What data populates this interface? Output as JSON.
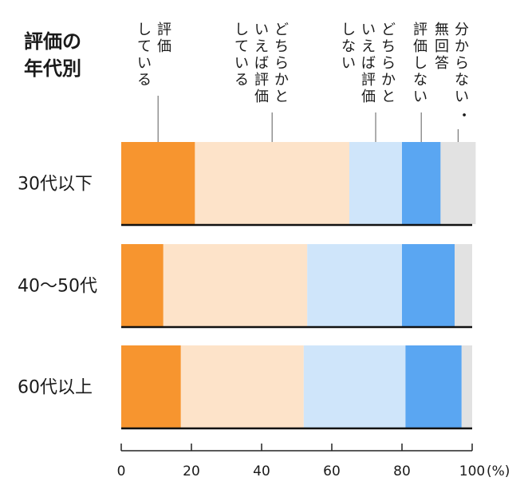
{
  "chart_data": {
    "type": "bar",
    "orientation": "horizontal",
    "stacked": true,
    "title": "評価の\n年代別",
    "categories": [
      "30代以下",
      "40〜50代",
      "60代以上"
    ],
    "series": [
      {
        "name": "評価\nしている",
        "values": [
          21,
          12,
          17
        ]
      },
      {
        "name": "どちらかと\nいえば評価\nしている",
        "values": [
          44,
          41,
          35
        ]
      },
      {
        "name": "どちらかと\nいえば評価\nしない",
        "values": [
          15,
          27,
          29
        ]
      },
      {
        "name": "評価しない",
        "values": [
          11,
          15,
          16
        ]
      },
      {
        "name": "分からない・\n無回答",
        "values": [
          10,
          5,
          3
        ]
      }
    ],
    "xlim": [
      0,
      100
    ],
    "xticks": [
      0,
      20,
      40,
      60,
      80,
      100
    ],
    "xtick_labels": [
      "0",
      "20",
      "40",
      "60",
      "80",
      "100"
    ],
    "xunit": "(%)",
    "legend_placement": "top",
    "grid": false,
    "colors": [
      "#f7952f",
      "#fde3c9",
      "#cfe5fa",
      "#5aa6f2",
      "#e2e2e2"
    ]
  }
}
